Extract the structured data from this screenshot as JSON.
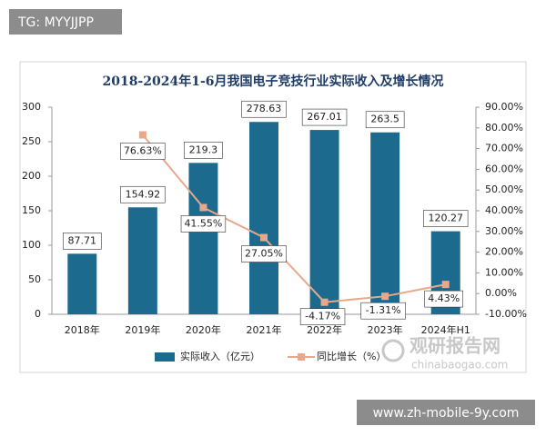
{
  "overlays": {
    "tg": "TG: MYYJJPP",
    "site": "www.zh-mobile-9y.com",
    "logo_name": "观研报告网",
    "logo_url": "chinabaogao.com"
  },
  "chart_data": {
    "type": "bar-line",
    "title": "2018-2024年1-6月我国电子竞技行业实际收入及增长情况",
    "categories": [
      "2018年",
      "2019年",
      "2020年",
      "2021年",
      "2022年",
      "2023年",
      "2024年H1"
    ],
    "series": [
      {
        "name": "实际收入（亿元）",
        "color": "#1c6b8f",
        "type": "bar",
        "values": [
          87.71,
          154.92,
          219.3,
          278.63,
          267.01,
          263.5,
          120.27
        ]
      },
      {
        "name": "同比增长（%）",
        "color": "#e9a88a",
        "type": "line",
        "axis": "y2",
        "values": [
          null,
          76.63,
          41.55,
          27.05,
          -4.17,
          -1.31,
          4.43
        ],
        "value_labels": [
          null,
          "76.63%",
          "41.55%",
          "27.05%",
          "-4.17%",
          "-1.31%",
          "4.43%"
        ]
      }
    ],
    "ylim": [
      0,
      300
    ],
    "yticks": [
      0,
      50,
      100,
      150,
      200,
      250,
      300
    ],
    "y2lim": [
      -10,
      90
    ],
    "y2ticks": [
      {
        "value": -10,
        "label": "-10.00%"
      },
      {
        "value": 0,
        "label": "0.00%"
      },
      {
        "value": 10,
        "label": "10.00%"
      },
      {
        "value": 20,
        "label": "20.00%"
      },
      {
        "value": 30,
        "label": "30.00%"
      },
      {
        "value": 40,
        "label": "40.00%"
      },
      {
        "value": 50,
        "label": "50.00%"
      },
      {
        "value": 60,
        "label": "60.00%"
      },
      {
        "value": 70,
        "label": "70.00%"
      },
      {
        "value": 80,
        "label": "80.00%"
      },
      {
        "value": 90,
        "label": "90.00%"
      }
    ],
    "grid": false,
    "legend": "bottom"
  }
}
